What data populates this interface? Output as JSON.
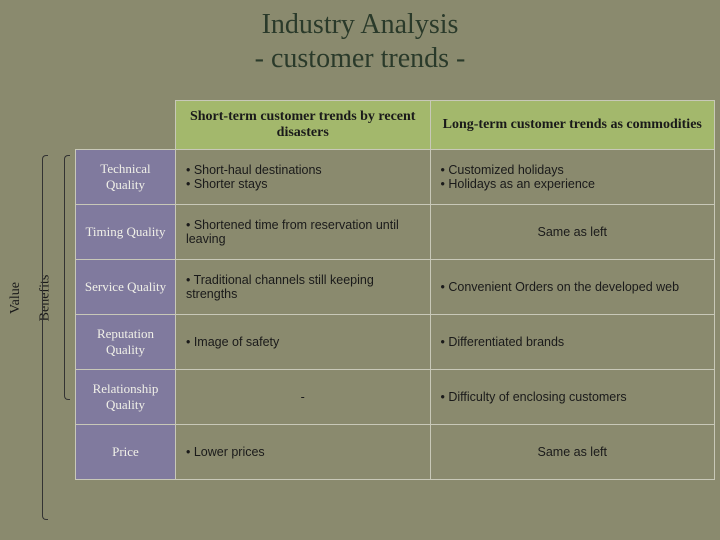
{
  "title_line1": "Industry Analysis",
  "title_line2": "- customer trends -",
  "vlabels": {
    "value": "Value",
    "benefits": "Benefits"
  },
  "headers": {
    "short": "Short-term customer trends by recent disasters",
    "long": "Long-term customer trends as commodities"
  },
  "rows": [
    {
      "label": "Technical Quality",
      "short": [
        "Short-haul destinations",
        "Shorter stays"
      ],
      "long": [
        "Customized holidays",
        "Holidays as an experience"
      ]
    },
    {
      "label": "Timing Quality",
      "short": [
        "Shortened time from reservation until leaving"
      ],
      "long_text": "Same as left"
    },
    {
      "label": "Service Quality",
      "short": [
        "Traditional channels still keeping strengths"
      ],
      "long": [
        "Convenient Orders on the developed web"
      ]
    },
    {
      "label": "Reputation Quality",
      "short": [
        "Image of safety"
      ],
      "long": [
        "Differentiated brands"
      ]
    },
    {
      "label": "Relationship Quality",
      "short_text": "-",
      "long": [
        "Difficulty of enclosing customers"
      ]
    },
    {
      "label": "Price",
      "short": [
        "Lower prices"
      ],
      "long_text": "Same as left"
    }
  ],
  "colors": {
    "background": "#8a8a6e",
    "header_bg": "#a3b86c",
    "rowlabel_bg": "#807a9e",
    "border": "#c8c8b8"
  }
}
